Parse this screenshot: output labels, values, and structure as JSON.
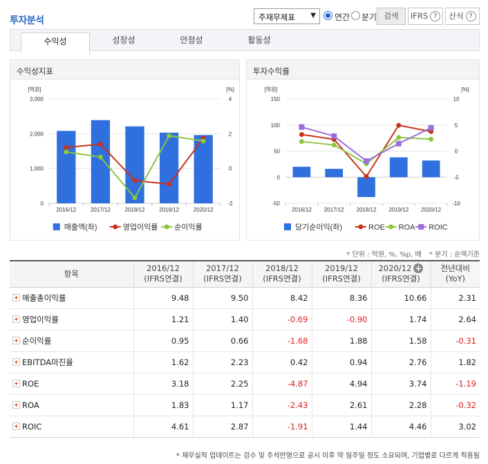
{
  "header": {
    "title": "투자분석",
    "select_value": "주재무제표",
    "radio_annual": "연간",
    "radio_quarter": "분기",
    "search_button": "검색",
    "ifrs_button": "IFRS",
    "formula_button": "산식",
    "help_glyph": "?"
  },
  "tabs": [
    "수익성",
    "성장성",
    "안정성",
    "활동성"
  ],
  "chart_left_title": "수익성지표",
  "chart_right_title": "투자수익률",
  "chart_data": [
    {
      "type": "bar",
      "title": "수익성지표",
      "categories": [
        "2016/12",
        "2017/12",
        "2018/12",
        "2019/12",
        "2020/12"
      ],
      "ylabel_left": "[억원]",
      "ylabel_right": "[%]",
      "ylim_left": [
        0,
        3000
      ],
      "yticks_left": [
        "0",
        "1,000",
        "2,000",
        "3,000"
      ],
      "ylim_right": [
        -2,
        4
      ],
      "yticks_right": [
        "-2",
        "0",
        "2",
        "4"
      ],
      "series": [
        {
          "name": "매출액(좌)",
          "kind": "bar",
          "axis": "left",
          "color": "#2f6fde",
          "values": [
            2080,
            2390,
            2210,
            2030,
            1960
          ]
        },
        {
          "name": "영업이익률",
          "kind": "line",
          "axis": "right",
          "color": "#c8321a",
          "values": [
            1.21,
            1.4,
            -0.69,
            -0.9,
            1.74
          ]
        },
        {
          "name": "순이익률",
          "kind": "line",
          "axis": "right",
          "color": "#8cc63f",
          "values": [
            0.95,
            0.66,
            -1.68,
            1.88,
            1.58
          ]
        }
      ],
      "legend_position": "bottom"
    },
    {
      "type": "bar",
      "title": "투자수익률",
      "categories": [
        "2016/12",
        "2017/12",
        "2018/12",
        "2019/12",
        "2020/12"
      ],
      "ylabel_left": "[억원]",
      "ylabel_right": "[%]",
      "ylim_left": [
        -50,
        150
      ],
      "yticks_left": [
        "-50",
        "0",
        "50",
        "100",
        "150"
      ],
      "ylim_right": [
        -10,
        10
      ],
      "yticks_right": [
        "-10",
        "-5",
        "0",
        "5",
        "10"
      ],
      "series": [
        {
          "name": "당기순이익(좌)",
          "kind": "bar",
          "axis": "left",
          "color": "#2f6fde",
          "values": [
            20,
            16,
            -38,
            38,
            32
          ]
        },
        {
          "name": "ROE",
          "kind": "line",
          "axis": "right",
          "color": "#c8321a",
          "values": [
            3.18,
            2.25,
            -4.87,
            4.94,
            3.74
          ]
        },
        {
          "name": "ROA",
          "kind": "line",
          "axis": "right",
          "color": "#8cc63f",
          "values": [
            1.83,
            1.17,
            -2.43,
            2.61,
            2.28
          ]
        },
        {
          "name": "ROIC",
          "kind": "line",
          "axis": "right",
          "color": "#9b6fd6",
          "marker": "square",
          "values": [
            4.61,
            2.87,
            -1.91,
            1.44,
            4.46
          ]
        }
      ],
      "legend_position": "bottom"
    }
  ],
  "notes": {
    "unit": "* 단위 : 억원, %, %p, 배",
    "quarter": "* 분기 : 순액기준"
  },
  "table": {
    "headers": [
      {
        "line1": "항목",
        "line2": ""
      },
      {
        "line1": "2016/12",
        "line2": "(IFRS연결)"
      },
      {
        "line1": "2017/12",
        "line2": "(IFRS연결)"
      },
      {
        "line1": "2018/12",
        "line2": "(IFRS연결)"
      },
      {
        "line1": "2019/12",
        "line2": "(IFRS연결)"
      },
      {
        "line1": "2020/12",
        "line2": "(IFRS연결)"
      },
      {
        "line1": "전년대비",
        "line2": "(YoY)"
      }
    ],
    "rows": [
      {
        "label": "매출총이익률",
        "values": [
          "9.48",
          "9.50",
          "8.42",
          "8.36",
          "10.66",
          "2.31"
        ]
      },
      {
        "label": "영업이익률",
        "values": [
          "1.21",
          "1.40",
          "-0.69",
          "-0.90",
          "1.74",
          "2.64"
        ]
      },
      {
        "label": "순이익률",
        "values": [
          "0.95",
          "0.66",
          "-1.68",
          "1.88",
          "1.58",
          "-0.31"
        ]
      },
      {
        "label": "EBITDA마진율",
        "values": [
          "1.62",
          "2.23",
          "0.42",
          "0.94",
          "2.76",
          "1.82"
        ]
      },
      {
        "label": "ROE",
        "values": [
          "3.18",
          "2.25",
          "-4.87",
          "4.94",
          "3.74",
          "-1.19"
        ]
      },
      {
        "label": "ROA",
        "values": [
          "1.83",
          "1.17",
          "-2.43",
          "2.61",
          "2.28",
          "-0.32"
        ]
      },
      {
        "label": "ROIC",
        "values": [
          "4.61",
          "2.87",
          "-1.91",
          "1.44",
          "4.46",
          "3.02"
        ]
      }
    ],
    "negative_color": "#e11a1a"
  },
  "footnote": "* 재무실적 업데이트는 검수 및 주석반영으로 공시 이후 약 일주일 정도 소요되며, 기업별로 다르게 적용됨"
}
